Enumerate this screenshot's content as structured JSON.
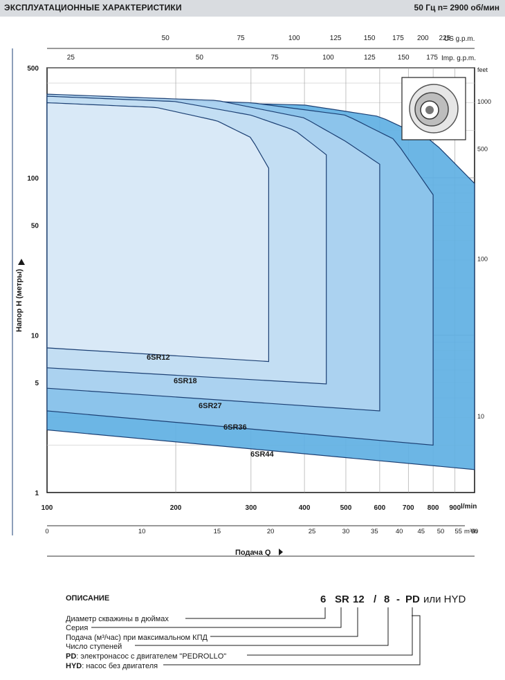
{
  "header": {
    "title": "ЭКСПЛУАТАЦИОННЫЕ ХАРАКТЕРИСТИКИ",
    "spec": "50 Гц    n= 2900 об/мин"
  },
  "colors": {
    "header_bg": "#d9dce0",
    "outline": "#1b3f73",
    "series_fill": [
      "#dbe9f7",
      "#c4def3",
      "#aed3f0",
      "#8fc5ec",
      "#5fb0e3"
    ]
  },
  "chart_data": {
    "type": "area",
    "ylabel": "Напор H (метры)",
    "xlabel": "Подача Q",
    "y_scale": "log",
    "x_scale": "log",
    "ylim": [
      1,
      500
    ],
    "xlim": [
      100,
      1000
    ],
    "y_ticks": [
      "500",
      "100",
      "50",
      "10",
      "5",
      "1"
    ],
    "x_ticks_lmin": [
      "100",
      "200",
      "300",
      "400",
      "500",
      "600",
      "700",
      "800",
      "900"
    ],
    "x_unit_lmin": "l/min",
    "x_ticks_m3h": [
      "0",
      "10",
      "15",
      "20",
      "25",
      "30",
      "35",
      "40",
      "45",
      "50",
      "55",
      "60"
    ],
    "x_unit_m3h": "m³/h",
    "top_ticks_us": [
      "50",
      "75",
      "100",
      "125",
      "150",
      "175",
      "200",
      "225"
    ],
    "top_unit_us": "US g.p.m.",
    "top_ticks_imp": [
      "25",
      "50",
      "75",
      "100",
      "125",
      "150",
      "175"
    ],
    "top_unit_imp": "Imp. g.p.m.",
    "feet_unit": "feet",
    "feet_ticks": [
      "1000",
      "500",
      "100",
      "10"
    ],
    "grid": true,
    "series": [
      {
        "name": "6SR44",
        "qmax": 1000,
        "upper": [
          [
            100,
            320
          ],
          [
            400,
            290
          ],
          [
            600,
            245
          ],
          [
            800,
            170
          ],
          [
            1000,
            92
          ]
        ],
        "lower": [
          [
            100,
            2.5
          ],
          [
            1000,
            1.4
          ]
        ]
      },
      {
        "name": "6SR36",
        "qmax": 800,
        "upper": [
          [
            100,
            330
          ],
          [
            300,
            300
          ],
          [
            500,
            250
          ],
          [
            650,
            175
          ],
          [
            800,
            78
          ]
        ],
        "lower": [
          [
            100,
            3.3
          ],
          [
            800,
            2.0
          ]
        ]
      },
      {
        "name": "6SR27",
        "qmax": 600,
        "upper": [
          [
            100,
            340
          ],
          [
            250,
            310
          ],
          [
            400,
            240
          ],
          [
            500,
            170
          ],
          [
            600,
            122
          ]
        ],
        "lower": [
          [
            100,
            4.6
          ],
          [
            600,
            3.3
          ]
        ]
      },
      {
        "name": "6SR18",
        "qmax": 450,
        "upper": [
          [
            100,
            330
          ],
          [
            200,
            305
          ],
          [
            300,
            250
          ],
          [
            380,
            200
          ],
          [
            450,
            140
          ]
        ],
        "lower": [
          [
            100,
            6.2
          ],
          [
            450,
            4.9
          ]
        ]
      },
      {
        "name": "6SR12",
        "qmax": 330,
        "upper": [
          [
            100,
            300
          ],
          [
            180,
            280
          ],
          [
            250,
            230
          ],
          [
            300,
            180
          ],
          [
            330,
            115
          ]
        ],
        "lower": [
          [
            100,
            8.3
          ],
          [
            330,
            6.8
          ]
        ]
      }
    ]
  },
  "description": {
    "title": "ОПИСАНИЕ",
    "code": [
      "6",
      "SR",
      "12",
      "/",
      "8",
      "-",
      "PD"
    ],
    "code_tail": "или HYD",
    "lines": [
      {
        "label": "Диаметр скважины в дюймах"
      },
      {
        "label": "Серия"
      },
      {
        "label": "Подача (м³/час) при максимальном КПД"
      },
      {
        "label": "Число ступеней"
      },
      {
        "bold": "PD",
        "label": ": электронасос с двигателем \"PEDROLLO\""
      },
      {
        "bold": "HYD",
        "label": ": насос без двигателя"
      }
    ]
  }
}
